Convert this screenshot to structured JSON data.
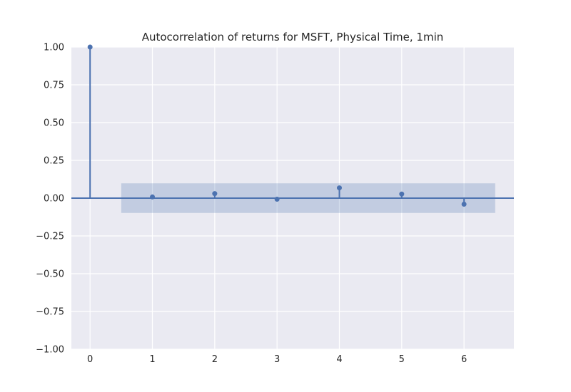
{
  "chart_data": {
    "type": "stem",
    "title": "Autocorrelation of returns for MSFT, Physical Time, 1min",
    "xlabel": "",
    "ylabel": "",
    "x": [
      0,
      1,
      2,
      3,
      4,
      5,
      6
    ],
    "values": [
      1.0,
      0.008,
      0.03,
      -0.007,
      0.068,
      0.027,
      -0.04
    ],
    "confidence_band": {
      "x_range": [
        0.5,
        6.5
      ],
      "lower": -0.098,
      "upper": 0.098
    },
    "xlim": [
      -0.3,
      6.8
    ],
    "ylim": [
      -1.0,
      1.0
    ],
    "x_ticks": [
      "0",
      "1",
      "2",
      "3",
      "4",
      "5",
      "6"
    ],
    "y_ticks": [
      "1.00",
      "0.75",
      "0.50",
      "0.25",
      "0.00",
      "−0.25",
      "−0.50",
      "−0.75",
      "−1.00"
    ],
    "y_tick_values": [
      1.0,
      0.75,
      0.5,
      0.25,
      0.0,
      -0.25,
      -0.5,
      -0.75,
      -1.0
    ],
    "grid": true,
    "colors": {
      "series": "#4c72b0",
      "band": "#4c72b0",
      "plot_background": "#eaeaf2",
      "grid": "#ffffff",
      "text": "#262626"
    }
  }
}
